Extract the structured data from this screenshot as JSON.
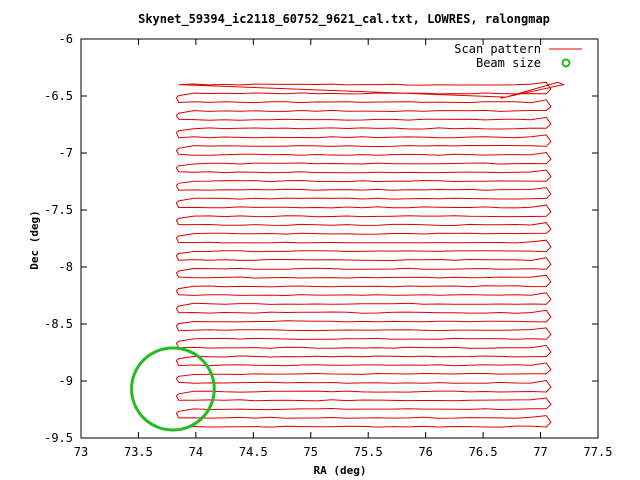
{
  "chart_data": {
    "type": "line",
    "title": "Skynet_59394_ic2118_60752_9621_cal.txt, LOWRES, ralongmap",
    "xlabel": "RA (deg)",
    "ylabel": "Dec (deg)",
    "xlim": [
      73,
      77.5
    ],
    "ylim": [
      -9.5,
      -6
    ],
    "x_ticks": [
      "73",
      "73.5",
      "74",
      "74.5",
      "75",
      "75.5",
      "76",
      "76.5",
      "77",
      "77.5"
    ],
    "y_ticks": [
      "-6",
      "-6.5",
      "-7",
      "-7.5",
      "-8",
      "-8.5",
      "-9",
      "-9.5"
    ],
    "grid": false,
    "legend_position": "top-right",
    "series": [
      {
        "name": "Scan pattern",
        "color": "#e00000",
        "style": "line",
        "scan_rows": {
          "dec_start": -9.4,
          "dec_end": -6.4,
          "count": 40,
          "ra_min": 73.85,
          "ra_max": 77.05
        },
        "end_excursion": [
          [
            76.7,
            -6.51
          ],
          [
            77.15,
            -6.38
          ],
          [
            77.2,
            -6.4
          ],
          [
            76.65,
            -6.52
          ]
        ]
      },
      {
        "name": "Beam size",
        "color": "#22bb22",
        "style": "circle",
        "center": [
          73.8,
          -9.07
        ],
        "radius_deg": 0.36
      }
    ]
  }
}
